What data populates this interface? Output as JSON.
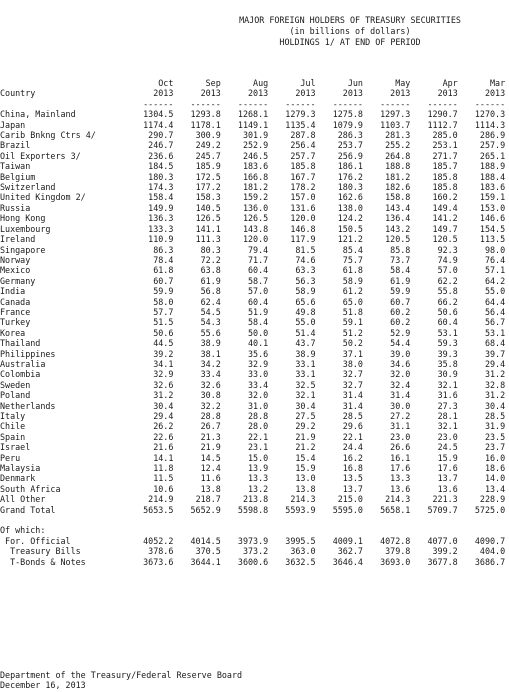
{
  "title": {
    "line1": "MAJOR FOREIGN HOLDERS OF TREASURY SECURITIES",
    "line2": "(in billions of dollars)",
    "line3": "HOLDINGS 1/ AT END OF PERIOD"
  },
  "header": {
    "country_label": "Country",
    "months": [
      "Oct",
      "Sep",
      "Aug",
      "Jul",
      "Jun",
      "May",
      "Apr",
      "Mar"
    ],
    "years": [
      "2013",
      "2013",
      "2013",
      "2013",
      "2013",
      "2013",
      "2013",
      "2013"
    ],
    "rule": "------"
  },
  "rows": [
    {
      "country": "China, Mainland",
      "values": [
        "1304.5",
        "1293.8",
        "1268.1",
        "1279.3",
        "1275.8",
        "1297.3",
        "1290.7",
        "1270.3"
      ]
    },
    {
      "country": "Japan",
      "values": [
        "1174.4",
        "1178.1",
        "1149.1",
        "1135.4",
        "1079.9",
        "1103.7",
        "1112.7",
        "1114.3"
      ]
    },
    {
      "country": "Carib Bnkng Ctrs 4/",
      "values": [
        "290.7",
        "300.9",
        "301.9",
        "287.8",
        "286.3",
        "281.3",
        "285.0",
        "286.9"
      ]
    },
    {
      "country": "Brazil",
      "values": [
        "246.7",
        "249.2",
        "252.9",
        "256.4",
        "253.7",
        "255.2",
        "253.1",
        "257.9"
      ]
    },
    {
      "country": "Oil Exporters 3/",
      "values": [
        "236.6",
        "245.7",
        "246.5",
        "257.7",
        "256.9",
        "264.8",
        "271.7",
        "265.1"
      ]
    },
    {
      "country": "Taiwan",
      "values": [
        "184.5",
        "185.9",
        "183.6",
        "185.8",
        "186.1",
        "188.8",
        "185.7",
        "188.9"
      ]
    },
    {
      "country": "Belgium",
      "values": [
        "180.3",
        "172.5",
        "166.8",
        "167.7",
        "176.2",
        "181.2",
        "185.8",
        "188.4"
      ]
    },
    {
      "country": "Switzerland",
      "values": [
        "174.3",
        "177.2",
        "181.2",
        "178.2",
        "180.3",
        "182.6",
        "185.8",
        "183.6"
      ]
    },
    {
      "country": "United Kingdom 2/",
      "values": [
        "158.4",
        "158.3",
        "159.2",
        "157.0",
        "162.6",
        "158.8",
        "160.2",
        "159.1"
      ]
    },
    {
      "country": "Russia",
      "values": [
        "149.9",
        "140.5",
        "136.0",
        "131.6",
        "138.0",
        "143.4",
        "149.4",
        "153.0"
      ]
    },
    {
      "country": "Hong Kong",
      "values": [
        "136.3",
        "126.5",
        "126.5",
        "120.0",
        "124.2",
        "136.4",
        "141.2",
        "146.6"
      ]
    },
    {
      "country": "Luxembourg",
      "values": [
        "133.3",
        "141.1",
        "143.8",
        "146.8",
        "150.5",
        "143.2",
        "149.7",
        "154.5"
      ]
    },
    {
      "country": "Ireland",
      "values": [
        "110.9",
        "111.3",
        "120.0",
        "117.9",
        "121.2",
        "120.5",
        "120.5",
        "113.5"
      ]
    },
    {
      "country": "Singapore",
      "values": [
        "86.3",
        "80.3",
        "79.4",
        "81.5",
        "85.4",
        "85.8",
        "92.3",
        "98.0"
      ]
    },
    {
      "country": "Norway",
      "values": [
        "78.4",
        "72.2",
        "71.7",
        "74.6",
        "75.7",
        "73.7",
        "74.9",
        "76.4"
      ]
    },
    {
      "country": "Mexico",
      "values": [
        "61.8",
        "63.8",
        "60.4",
        "63.3",
        "61.8",
        "58.4",
        "57.0",
        "57.1"
      ]
    },
    {
      "country": "Germany",
      "values": [
        "60.7",
        "61.9",
        "58.7",
        "56.3",
        "58.9",
        "61.9",
        "62.2",
        "64.2"
      ]
    },
    {
      "country": "India",
      "values": [
        "59.9",
        "56.8",
        "57.0",
        "58.9",
        "61.2",
        "59.9",
        "55.8",
        "55.0"
      ]
    },
    {
      "country": "Canada",
      "values": [
        "58.0",
        "62.4",
        "60.4",
        "65.6",
        "65.0",
        "60.7",
        "66.2",
        "64.4"
      ]
    },
    {
      "country": "France",
      "values": [
        "57.7",
        "54.5",
        "51.9",
        "49.8",
        "51.8",
        "60.2",
        "50.6",
        "56.4"
      ]
    },
    {
      "country": "Turkey",
      "values": [
        "51.5",
        "54.3",
        "58.4",
        "55.0",
        "59.1",
        "60.2",
        "60.4",
        "56.7"
      ]
    },
    {
      "country": "Korea",
      "values": [
        "50.6",
        "55.6",
        "50.0",
        "51.4",
        "51.2",
        "52.9",
        "53.1",
        "53.1"
      ]
    },
    {
      "country": "Thailand",
      "values": [
        "44.5",
        "38.9",
        "40.1",
        "43.7",
        "50.2",
        "54.4",
        "59.3",
        "68.4"
      ]
    },
    {
      "country": "Philippines",
      "values": [
        "39.2",
        "38.1",
        "35.6",
        "38.9",
        "37.1",
        "39.0",
        "39.3",
        "39.7"
      ]
    },
    {
      "country": "Australia",
      "values": [
        "34.1",
        "34.2",
        "32.9",
        "33.1",
        "38.0",
        "34.6",
        "35.8",
        "29.4"
      ]
    },
    {
      "country": "Colombia",
      "values": [
        "32.9",
        "33.4",
        "33.0",
        "33.1",
        "32.7",
        "32.0",
        "30.9",
        "31.2"
      ]
    },
    {
      "country": "Sweden",
      "values": [
        "32.6",
        "32.6",
        "33.4",
        "32.5",
        "32.7",
        "32.4",
        "32.1",
        "32.8"
      ]
    },
    {
      "country": "Poland",
      "values": [
        "31.2",
        "30.8",
        "32.0",
        "32.1",
        "31.4",
        "31.4",
        "31.6",
        "31.2"
      ]
    },
    {
      "country": "Netherlands",
      "values": [
        "30.4",
        "32.2",
        "31.0",
        "30.4",
        "31.4",
        "30.0",
        "27.3",
        "30.4"
      ]
    },
    {
      "country": "Italy",
      "values": [
        "29.4",
        "28.8",
        "28.8",
        "27.5",
        "28.5",
        "27.2",
        "28.1",
        "28.5"
      ]
    },
    {
      "country": "Chile",
      "values": [
        "26.2",
        "26.7",
        "28.0",
        "29.2",
        "29.6",
        "31.1",
        "32.1",
        "31.9"
      ]
    },
    {
      "country": "Spain",
      "values": [
        "22.6",
        "21.3",
        "22.1",
        "21.9",
        "22.1",
        "23.0",
        "23.0",
        "23.5"
      ]
    },
    {
      "country": "Israel",
      "values": [
        "21.6",
        "21.9",
        "23.1",
        "21.2",
        "24.4",
        "26.6",
        "24.5",
        "23.7"
      ]
    },
    {
      "country": "Peru",
      "values": [
        "14.1",
        "14.5",
        "15.0",
        "15.4",
        "16.2",
        "16.1",
        "15.9",
        "16.0"
      ]
    },
    {
      "country": "Malaysia",
      "values": [
        "11.8",
        "12.4",
        "13.9",
        "15.9",
        "16.8",
        "17.6",
        "17.6",
        "18.6"
      ]
    },
    {
      "country": "Denmark",
      "values": [
        "11.5",
        "11.6",
        "13.3",
        "13.0",
        "13.5",
        "13.3",
        "13.7",
        "14.0"
      ]
    },
    {
      "country": "South Africa",
      "values": [
        "10.6",
        "13.8",
        "13.2",
        "13.8",
        "13.7",
        "13.6",
        "13.6",
        "13.4"
      ]
    },
    {
      "country": "All Other",
      "values": [
        "214.9",
        "218.7",
        "213.8",
        "214.3",
        "215.0",
        "214.3",
        "221.3",
        "228.9"
      ]
    },
    {
      "country": "Grand Total",
      "values": [
        "5653.5",
        "5652.9",
        "5598.8",
        "5593.9",
        "5595.0",
        "5658.1",
        "5709.7",
        "5725.0"
      ]
    }
  ],
  "of_which": {
    "label": "Of which:",
    "rows": [
      {
        "country": " For. Official",
        "values": [
          "4052.2",
          "4014.5",
          "3973.9",
          "3995.5",
          "4009.1",
          "4072.8",
          "4077.0",
          "4090.7"
        ]
      },
      {
        "country": "  Treasury Bills",
        "values": [
          "378.6",
          "370.5",
          "373.2",
          "363.0",
          "362.7",
          "379.8",
          "399.2",
          "404.0"
        ]
      },
      {
        "country": "  T-Bonds & Notes",
        "values": [
          "3673.6",
          "3644.1",
          "3600.6",
          "3632.5",
          "3646.4",
          "3693.0",
          "3677.8",
          "3686.7"
        ]
      }
    ]
  },
  "footer": {
    "source": "Department of the Treasury/Federal Reserve Board",
    "date": "December 16, 2013"
  }
}
